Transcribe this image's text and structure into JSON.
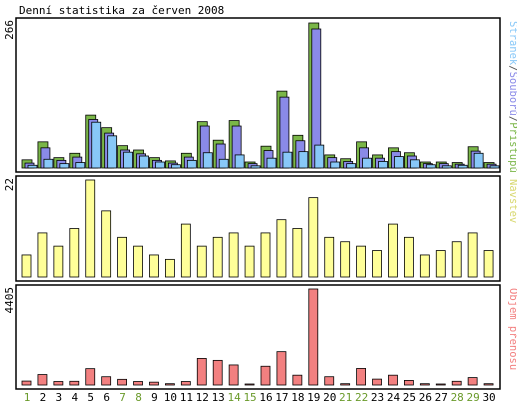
{
  "chart_data": {
    "type": "bar",
    "title": "Denní statistika za červen 2008",
    "categories": [
      "1",
      "2",
      "3",
      "4",
      "5",
      "6",
      "7",
      "8",
      "9",
      "10",
      "11",
      "12",
      "13",
      "14",
      "15",
      "16",
      "17",
      "18",
      "19",
      "20",
      "21",
      "22",
      "23",
      "24",
      "25",
      "26",
      "27",
      "28",
      "29",
      "30"
    ],
    "weekend_days": [
      "1",
      "7",
      "8",
      "14",
      "15",
      "21",
      "22",
      "28",
      "29"
    ],
    "colors": {
      "frame": "#000000",
      "weekday_label": "#000000",
      "weekend_label": "#6a9a2a",
      "hits": "#7ab648",
      "files": "#8a8ae8",
      "pages": "#88c8f8",
      "visits": "#ffff99",
      "kbytes": "#f28080",
      "visits_title": "#d8d870",
      "kbytes_title": "#f28080"
    },
    "panels": [
      {
        "id": "hits-files-pages",
        "ymax_label": "266",
        "ylim": [
          0,
          266
        ],
        "legend_labels": [
          "Stránek",
          "Souborů",
          "Přístupů"
        ],
        "legend_separator": "/",
        "series": [
          {
            "name": "Přístupů",
            "key": "hits",
            "values": [
              15,
              48,
              19,
              27,
              97,
              74,
              41,
              33,
              19,
              13,
              27,
              85,
              51,
              87,
              11,
              40,
              141,
              60,
              266,
              24,
              17,
              48,
              24,
              37,
              28,
              11,
              11,
              10,
              39,
              10
            ]
          },
          {
            "name": "Souborů",
            "key": "files",
            "values": [
              9,
              37,
              14,
              20,
              89,
              64,
              33,
              26,
              14,
              9,
              20,
              77,
              44,
              77,
              8,
              32,
              130,
              50,
              255,
              19,
              12,
              37,
              18,
              30,
              22,
              8,
              8,
              7,
              31,
              7
            ]
          },
          {
            "name": "Stránek",
            "key": "pages",
            "values": [
              5,
              16,
              8,
              10,
              84,
              59,
              29,
              22,
              11,
              6,
              14,
              28,
              16,
              24,
              4,
              18,
              29,
              30,
              42,
              11,
              8,
              18,
              12,
              21,
              15,
              6,
              4,
              5,
              27,
              4
            ]
          }
        ]
      },
      {
        "id": "visits",
        "ymax_label": "22",
        "ylim": [
          0,
          22
        ],
        "legend_labels": [
          "Návštěv"
        ],
        "series": [
          {
            "name": "Návštěv",
            "key": "visits",
            "values": [
              5,
              10,
              7,
              11,
              22,
              15,
              9,
              7,
              5,
              4,
              12,
              7,
              9,
              10,
              7,
              10,
              13,
              11,
              18,
              9,
              8,
              7,
              6,
              12,
              9,
              5,
              6,
              8,
              10,
              6
            ]
          }
        ]
      },
      {
        "id": "kbytes",
        "ymax_label": "4405",
        "ylim": [
          0,
          4405
        ],
        "legend_labels": [
          "Objem přenosu"
        ],
        "series": [
          {
            "name": "Objem přenosu",
            "key": "kbytes",
            "values": [
              180,
              480,
              160,
              170,
              750,
              380,
              260,
              160,
              130,
              60,
              160,
              1220,
              1130,
              920,
              40,
              860,
              1530,
              450,
              4405,
              380,
              60,
              760,
              270,
              450,
              210,
              60,
              40,
              170,
              340,
              60
            ]
          }
        ]
      }
    ]
  }
}
